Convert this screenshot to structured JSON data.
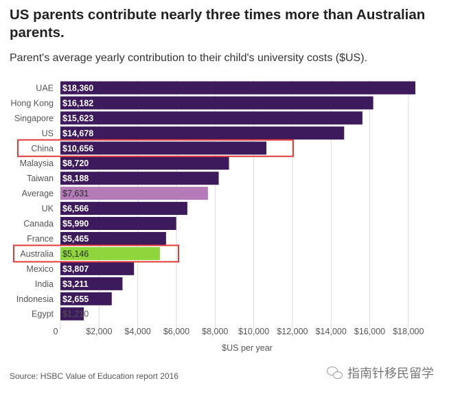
{
  "title": "US parents contribute nearly three times more than Australian parents.",
  "subtitle": "Parent's average yearly contribution to their child's university costs ($US).",
  "source": "Source: HSBC Value of Education report 2016",
  "watermark": "指南针移民留学",
  "colors": {
    "bar": "#3d1a5b",
    "average": "#b57bb8",
    "australia": "#8fd63c",
    "highlight_box": "#e23b3b",
    "grid": "#d9d9d9",
    "text": "#555555"
  },
  "chart_data": {
    "type": "bar",
    "orientation": "horizontal",
    "categories": [
      "UAE",
      "Hong Kong",
      "Singapore",
      "US",
      "China",
      "Malaysia",
      "Taiwan",
      "Average",
      "UK",
      "Canada",
      "France",
      "Australia",
      "Mexico",
      "India",
      "Indonesia",
      "Egypt"
    ],
    "values": [
      18360,
      16182,
      15623,
      14678,
      10656,
      8720,
      8188,
      7631,
      6566,
      5990,
      5465,
      5146,
      3807,
      3211,
      2655,
      1210
    ],
    "value_labels": [
      "$18,360",
      "$16,182",
      "$15,623",
      "$14,678",
      "$10,656",
      "$8,720",
      "$8,188",
      "$7,631",
      "$6,566",
      "$5,990",
      "$5,465",
      "$5,146",
      "$3,807",
      "$3,211",
      "$2,655",
      "$1,210"
    ],
    "special_colors": {
      "Average": "#b57bb8",
      "Australia": "#8fd63c"
    },
    "highlighted": [
      "China",
      "Australia"
    ],
    "xlim": [
      0,
      19000
    ],
    "xticks": [
      0,
      2000,
      4000,
      6000,
      8000,
      10000,
      12000,
      14000,
      16000,
      18000
    ],
    "xtick_labels": [
      "0",
      "$2,000",
      "$4,000",
      "$6,000",
      "$8,000",
      "$10,000",
      "$12,000",
      "$14,000",
      "$16,000",
      "$18,000"
    ],
    "xlabel": "$US per year",
    "ylabel": "",
    "grid": true
  }
}
